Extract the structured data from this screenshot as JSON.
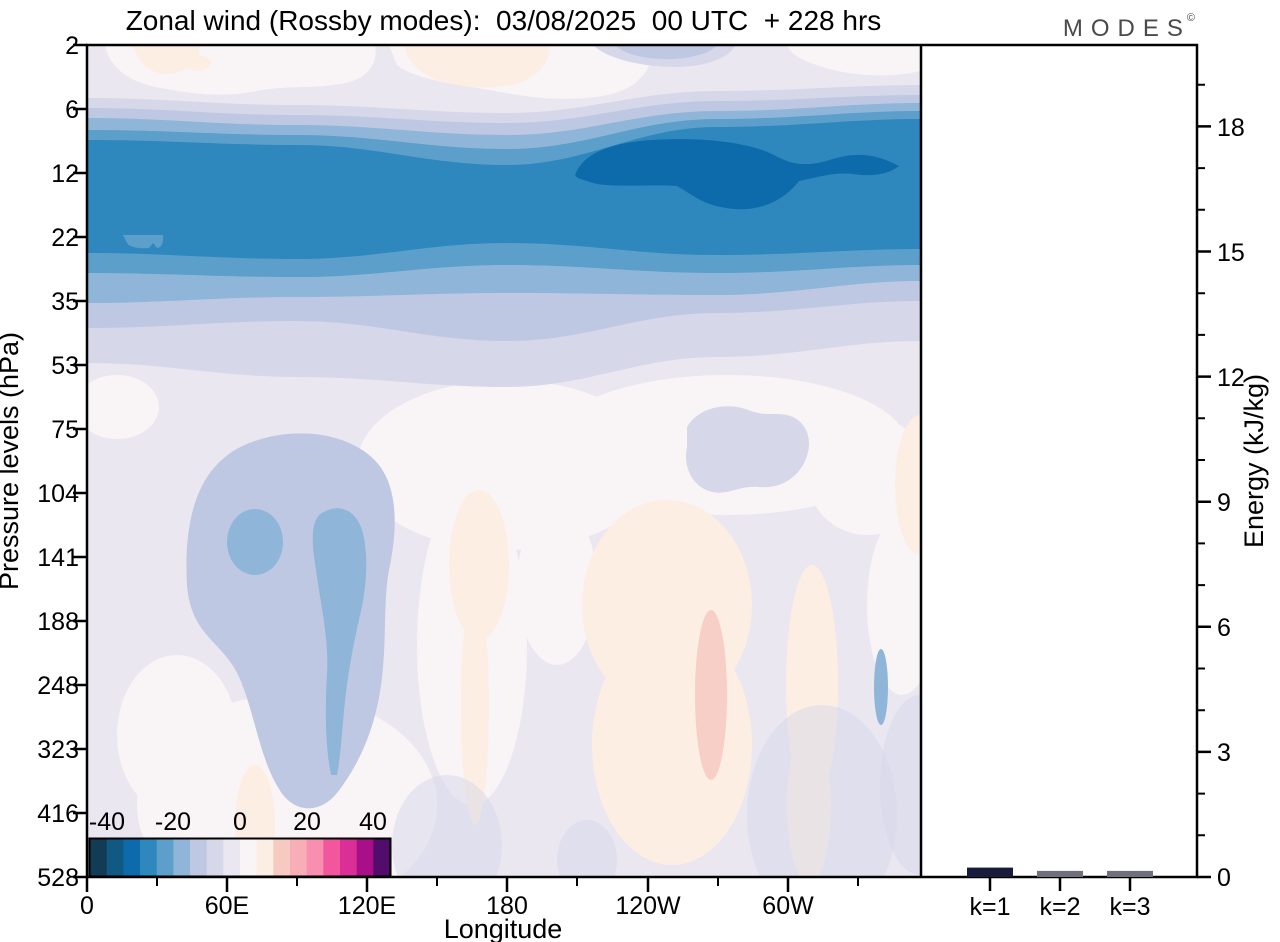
{
  "title": "Zonal wind (Rossby modes):  03/08/2025  00 UTC  + 228 hrs",
  "logo": {
    "text": "MODES",
    "mark": "©"
  },
  "contour": {
    "xlabel": "Longitude",
    "ylabel": "Pressure levels (hPa)",
    "x_ticks": [
      "0",
      "60E",
      "120E",
      "180",
      "120W",
      "60W"
    ],
    "y_ticks": [
      "2",
      "6",
      "12",
      "22",
      "35",
      "53",
      "75",
      "104",
      "141",
      "188",
      "248",
      "323",
      "416",
      "528"
    ]
  },
  "colorbar": {
    "ticks": [
      "-40",
      "-20",
      "0",
      "20",
      "40"
    ],
    "colors": [
      "#123c55",
      "#0f5982",
      "#0d6bab",
      "#2e87bd",
      "#5b9fca",
      "#8fb6d9",
      "#bfc8e2",
      "#d6d7e9",
      "#eae7f1",
      "#f9f4f6",
      "#fdeee3",
      "#f6c9c1",
      "#f8aeb7",
      "#f98fb0",
      "#f2579e",
      "#da2f96",
      "#a90f88",
      "#520c6b"
    ]
  },
  "energy": {
    "ylabel": "Energy (kJ/kg)",
    "ticks": [
      "0",
      "3",
      "6",
      "9",
      "12",
      "15",
      "18"
    ],
    "categories": [
      "k=1",
      "k=2",
      "k=3"
    ],
    "values": [
      0.13,
      0.05,
      0.05
    ],
    "bar_colors": [
      "#191b3c",
      "#70707c",
      "#70707c"
    ]
  },
  "chart_data": [
    {
      "type": "heatmap",
      "title": "Zonal wind (Rossby modes): 03/08/2025 00 UTC + 228 hrs",
      "xlabel": "Longitude",
      "ylabel": "Pressure levels (hPa)",
      "x_ticks": [
        "0",
        "60E",
        "120E",
        "180",
        "120W",
        "60W"
      ],
      "x_range_deg": [
        0,
        360
      ],
      "y_levels_hPa": [
        2,
        6,
        12,
        22,
        35,
        53,
        75,
        104,
        141,
        188,
        248,
        323,
        416,
        528
      ],
      "contour_levels": {
        "min": -45,
        "max": 45,
        "step": 5
      },
      "units": "m/s",
      "grid": false,
      "features": [
        {
          "desc": "strong negative (easterly) zonal band spanning all longitudes",
          "pressure_hPa": [
            6,
            35
          ],
          "value_range": [
            -35,
            -20
          ]
        },
        {
          "desc": "darkest core of the band",
          "pressure_hPa": [
            10,
            18
          ],
          "longitude": "170E-130W",
          "value_range": [
            -40,
            -30
          ]
        },
        {
          "desc": "small weaker pocket inside band",
          "pressure_hPa": [
            20,
            24
          ],
          "longitude": "15E-35E",
          "value_range": [
            -25,
            -20
          ]
        },
        {
          "desc": "weak negative lobe with two cores",
          "pressure_hPa": [
            95,
            300
          ],
          "longitude": "35E-120E",
          "value_range": [
            -20,
            -5
          ]
        },
        {
          "desc": "weak positive patches",
          "pressure_hPa": [
            100,
            528
          ],
          "longitude": "150E-60W",
          "value_range": [
            0,
            10
          ]
        },
        {
          "desc": "near-zero pale field elsewhere below 53 hPa",
          "pressure_hPa": [
            53,
            528
          ],
          "value_range": [
            -10,
            5
          ]
        }
      ]
    },
    {
      "type": "bar",
      "categories": [
        "k=1",
        "k=2",
        "k=3"
      ],
      "values": [
        0.13,
        0.05,
        0.05
      ],
      "ylabel": "Energy (kJ/kg)",
      "ylim": [
        0,
        20
      ],
      "y_major_ticks": [
        0,
        3,
        6,
        9,
        12,
        15,
        18
      ],
      "bar_colors": [
        "#191b3c",
        "#70707c",
        "#70707c"
      ],
      "legend": "none"
    }
  ]
}
